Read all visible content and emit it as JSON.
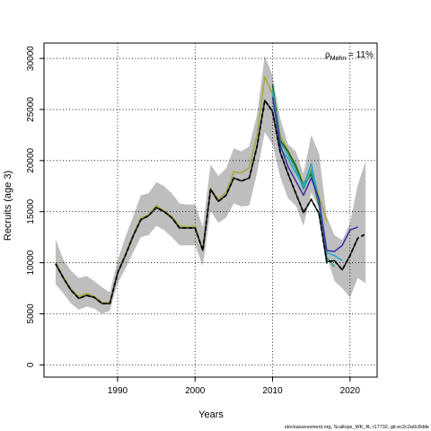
{
  "chart_data": {
    "type": "line",
    "xlabel": "Years",
    "ylabel": "Recruits (age 3)",
    "xlim": [
      1980.5,
      2023.5
    ],
    "ylim": [
      -1200,
      31500
    ],
    "x_ticks": [
      1990,
      2000,
      2010,
      2020
    ],
    "y_ticks": [
      0,
      5000,
      10000,
      15000,
      20000,
      25000,
      30000
    ],
    "grid": true,
    "annotation": "ρ_Mohn = 11%",
    "annotation_main": "ρ",
    "annotation_sub": "Mohn",
    "annotation_rest": " = 11%",
    "footer": "stockassessment.org, Scallops_WK_fit, r17732, git:ec2c2a0c8dde",
    "confidence_band": {
      "color": "#bebebe",
      "x": [
        1982,
        1983,
        1984,
        1985,
        1986,
        1987,
        1988,
        1989,
        1990,
        1991,
        1992,
        1993,
        1994,
        1995,
        1996,
        1997,
        1998,
        1999,
        2000,
        2001,
        2002,
        2003,
        2004,
        2005,
        2006,
        2007,
        2008,
        2009,
        2010,
        2011,
        2012,
        2013,
        2014,
        2015,
        2016,
        2017,
        2018,
        2019,
        2020,
        2021,
        2022
      ],
      "upper": [
        12300,
        10300,
        9200,
        8500,
        8700,
        8200,
        7600,
        7100,
        10200,
        12500,
        14500,
        16600,
        16800,
        17900,
        17500,
        16800,
        15800,
        15700,
        15700,
        13500,
        19600,
        18500,
        19200,
        21200,
        20900,
        21400,
        24500,
        30300,
        28300,
        24100,
        21600,
        20900,
        18700,
        22500,
        20700,
        14500,
        12700,
        12200,
        13900,
        17600,
        19900
      ],
      "lower": [
        7900,
        7000,
        6000,
        5400,
        5700,
        5500,
        5000,
        5300,
        8000,
        9400,
        11000,
        12500,
        12700,
        13600,
        13200,
        12500,
        11700,
        11700,
        11700,
        9700,
        15100,
        13900,
        14400,
        15800,
        15500,
        15600,
        18800,
        22800,
        21600,
        18400,
        16300,
        15600,
        13600,
        16900,
        15300,
        10600,
        8200,
        7500,
        6600,
        8500,
        8000
      ]
    },
    "series": [
      {
        "color": "#000000",
        "width": 1.8,
        "dash": "4,3",
        "x": [
          1982,
          1983,
          1984,
          1985,
          1986,
          1987,
          1988,
          1989,
          1990,
          1991,
          1992,
          1993,
          1994,
          1995,
          1996,
          1997,
          1998,
          1999,
          2000,
          2001,
          2002,
          2003,
          2004,
          2005,
          2006,
          2007,
          2008,
          2009,
          2010,
          2011,
          2012,
          2013,
          2014,
          2015,
          2016,
          2017,
          2018,
          2019,
          2020,
          2021,
          2022
        ],
        "values": [
          9900,
          8500,
          7300,
          6500,
          6800,
          6600,
          6000,
          6000,
          9000,
          10700,
          12600,
          14200,
          14600,
          15400,
          15000,
          14400,
          13400,
          13400,
          13400,
          11200,
          17200,
          16000,
          16600,
          18300,
          18000,
          18300,
          21400,
          25900,
          24800,
          20800,
          18700,
          16800,
          14900,
          16200,
          14800,
          10100,
          10200,
          9300,
          10700,
          12400,
          12800
        ]
      },
      {
        "color": "#1a1a1a",
        "width": 1.5,
        "dash": "",
        "x": [
          1982,
          1983,
          1984,
          1985,
          1986,
          1987,
          1988,
          1989,
          1990,
          1991,
          1992,
          1993,
          1994,
          1995,
          1996,
          1997,
          1998,
          1999,
          2000,
          2001,
          2002,
          2003,
          2004,
          2005,
          2006,
          2007,
          2008,
          2009,
          2010,
          2011,
          2012,
          2013,
          2014,
          2015,
          2016,
          2017,
          2018,
          2019,
          2020,
          2021
        ],
        "values": [
          9900,
          8500,
          7300,
          6500,
          6800,
          6600,
          6000,
          6000,
          9000,
          10700,
          12600,
          14200,
          14600,
          15400,
          15000,
          14400,
          13400,
          13400,
          13400,
          11200,
          17200,
          16000,
          16600,
          18300,
          18000,
          18300,
          21400,
          25900,
          24800,
          20800,
          18700,
          16800,
          14900,
          16200,
          14800,
          10100,
          10200,
          9300,
          10700,
          12400
        ]
      },
      {
        "color": "#3b2ea8",
        "width": 1.5,
        "dash": "",
        "x": [
          2010,
          2011,
          2012,
          2013,
          2014,
          2015,
          2016,
          2017,
          2018,
          2019,
          2020,
          2021
        ],
        "values": [
          26200,
          21500,
          19400,
          18000,
          16600,
          18300,
          16200,
          11200,
          11100,
          11700,
          13200,
          13500
        ]
      },
      {
        "color": "#22a7d9",
        "width": 1.5,
        "dash": "",
        "x": [
          2010,
          2011,
          2012,
          2013,
          2014,
          2015,
          2016,
          2017,
          2018,
          2019
        ],
        "values": [
          26500,
          21200,
          20200,
          18800,
          17500,
          19700,
          16000,
          11000,
          10700,
          10200
        ]
      },
      {
        "color": "#22a884",
        "width": 1.5,
        "dash": "",
        "x": [
          2010,
          2011,
          2012,
          2013,
          2014,
          2015,
          2016,
          2017,
          2018
        ],
        "values": [
          26900,
          21800,
          20600,
          19200,
          17200,
          19000,
          15900,
          10500,
          9600
        ]
      },
      {
        "color": "#1b5e20",
        "width": 1.5,
        "dash": "",
        "x": [
          2010,
          2011,
          2012,
          2013,
          2014,
          2015,
          2016,
          2017
        ],
        "values": [
          27400,
          22000,
          20900,
          19500,
          17500,
          18700,
          15600,
          9900
        ]
      },
      {
        "color": "#a8a83a",
        "width": 1.5,
        "dash": "",
        "x": [
          1982,
          1983,
          1984,
          1985,
          1986,
          1987,
          1988,
          1989,
          1990,
          1991,
          1992,
          1993,
          1994,
          1995,
          1996,
          1997,
          1998,
          1999,
          2000,
          2001,
          2002,
          2003,
          2004,
          2005,
          2006,
          2007,
          2008,
          2009,
          2010,
          2011,
          2012,
          2013,
          2014,
          2015,
          2016,
          2017
        ],
        "values": [
          10000,
          8600,
          7400,
          6700,
          7000,
          6700,
          6100,
          6100,
          9000,
          10800,
          12700,
          14400,
          14700,
          15600,
          15100,
          14500,
          13600,
          13500,
          13600,
          11300,
          17300,
          16200,
          16900,
          18900,
          18800,
          19300,
          22500,
          28200,
          26500,
          22400,
          21000,
          19600,
          17800,
          19200,
          16500,
          14000
        ]
      }
    ]
  }
}
